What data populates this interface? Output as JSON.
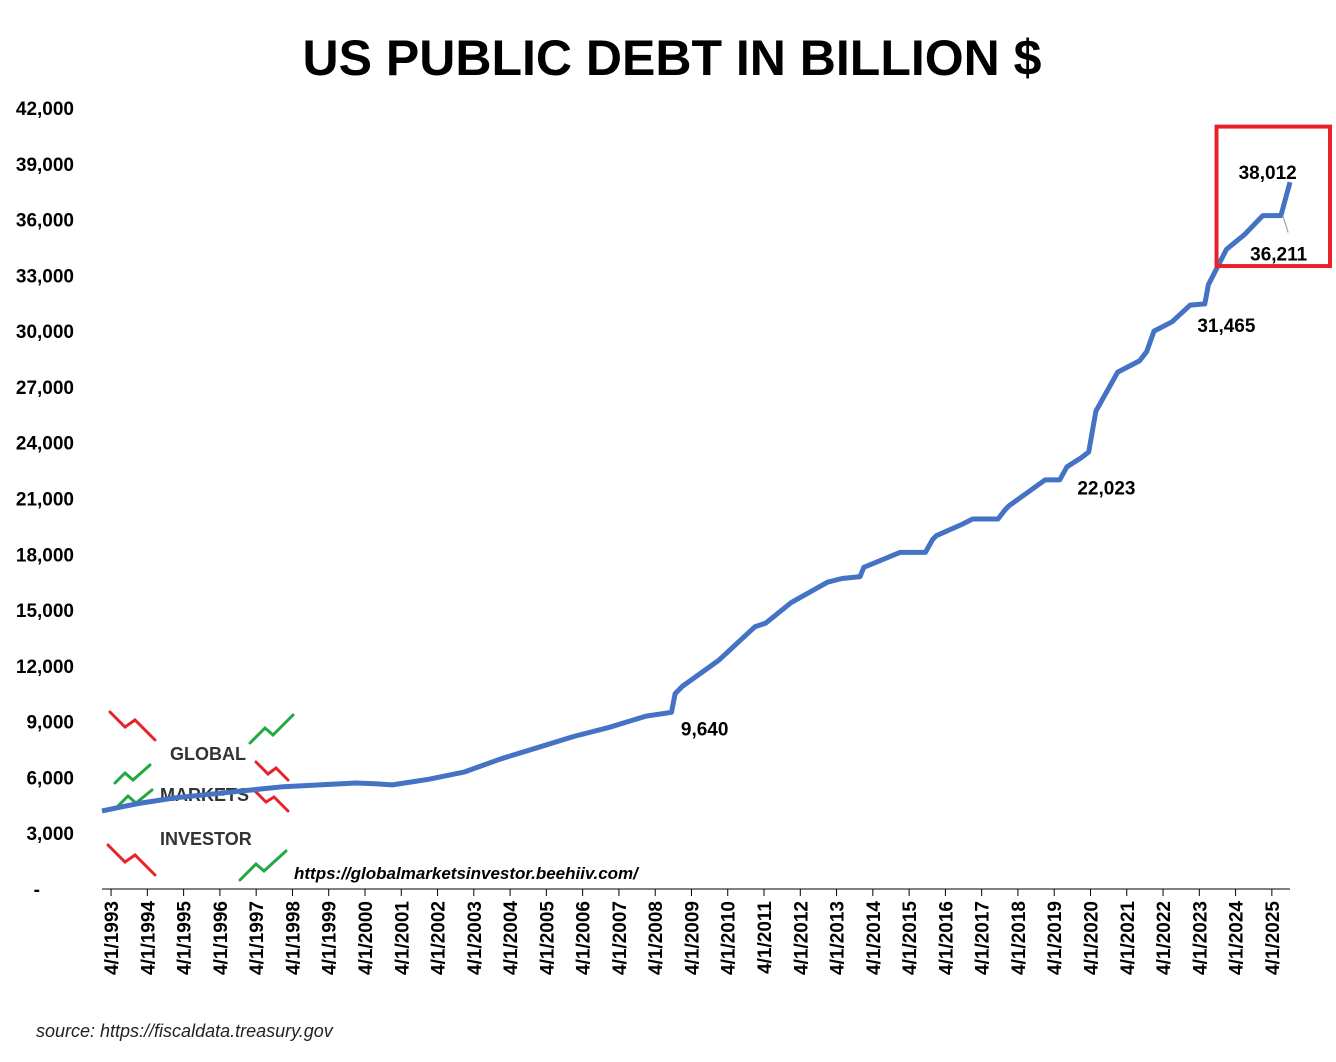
{
  "chart_data": {
    "type": "line",
    "title": "US PUBLIC DEBT IN BILLION $",
    "xlabel": "",
    "ylabel": "",
    "ylim": [
      0,
      42000
    ],
    "y_ticks": [
      {
        "value": 0,
        "label": "-"
      },
      {
        "value": 3000,
        "label": "3,000"
      },
      {
        "value": 6000,
        "label": "6,000"
      },
      {
        "value": 9000,
        "label": "9,000"
      },
      {
        "value": 12000,
        "label": "12,000"
      },
      {
        "value": 15000,
        "label": "15,000"
      },
      {
        "value": 18000,
        "label": "18,000"
      },
      {
        "value": 21000,
        "label": "21,000"
      },
      {
        "value": 24000,
        "label": "24,000"
      },
      {
        "value": 27000,
        "label": "27,000"
      },
      {
        "value": 30000,
        "label": "30,000"
      },
      {
        "value": 33000,
        "label": "33,000"
      },
      {
        "value": 36000,
        "label": "36,000"
      },
      {
        "value": 39000,
        "label": "39,000"
      },
      {
        "value": 42000,
        "label": "42,000"
      }
    ],
    "x_range": [
      1993.0,
      2025.75
    ],
    "x_ticks": [
      {
        "value": 1993.25,
        "label": "4/1/1993"
      },
      {
        "value": 1994.25,
        "label": "4/1/1994"
      },
      {
        "value": 1995.25,
        "label": "4/1/1995"
      },
      {
        "value": 1996.25,
        "label": "4/1/1996"
      },
      {
        "value": 1997.25,
        "label": "4/1/1997"
      },
      {
        "value": 1998.25,
        "label": "4/1/1998"
      },
      {
        "value": 1999.25,
        "label": "4/1/1999"
      },
      {
        "value": 2000.25,
        "label": "4/1/2000"
      },
      {
        "value": 2001.25,
        "label": "4/1/2001"
      },
      {
        "value": 2002.25,
        "label": "4/1/2002"
      },
      {
        "value": 2003.25,
        "label": "4/1/2003"
      },
      {
        "value": 2004.25,
        "label": "4/1/2004"
      },
      {
        "value": 2005.25,
        "label": "4/1/2005"
      },
      {
        "value": 2006.25,
        "label": "4/1/2006"
      },
      {
        "value": 2007.25,
        "label": "4/1/2007"
      },
      {
        "value": 2008.25,
        "label": "4/1/2008"
      },
      {
        "value": 2009.25,
        "label": "4/1/2009"
      },
      {
        "value": 2010.25,
        "label": "4/1/2010"
      },
      {
        "value": 2011.25,
        "label": "4/1/2011"
      },
      {
        "value": 2012.25,
        "label": "4/1/2012"
      },
      {
        "value": 2013.25,
        "label": "4/1/2013"
      },
      {
        "value": 2014.25,
        "label": "4/1/2014"
      },
      {
        "value": 2015.25,
        "label": "4/1/2015"
      },
      {
        "value": 2016.25,
        "label": "4/1/2016"
      },
      {
        "value": 2017.25,
        "label": "4/1/2017"
      },
      {
        "value": 2018.25,
        "label": "4/1/2018"
      },
      {
        "value": 2019.25,
        "label": "4/1/2019"
      },
      {
        "value": 2020.25,
        "label": "4/1/2020"
      },
      {
        "value": 2021.25,
        "label": "4/1/2021"
      },
      {
        "value": 2022.25,
        "label": "4/1/2022"
      },
      {
        "value": 2023.25,
        "label": "4/1/2023"
      },
      {
        "value": 2024.25,
        "label": "4/1/2024"
      },
      {
        "value": 2025.25,
        "label": "4/1/2025"
      }
    ],
    "series": [
      {
        "name": "US Public Debt (billion $)",
        "color": "#4472C4",
        "points": [
          [
            1993.0,
            4200
          ],
          [
            1994.0,
            4600
          ],
          [
            1995.0,
            4900
          ],
          [
            1996.0,
            5100
          ],
          [
            1997.0,
            5300
          ],
          [
            1998.0,
            5500
          ],
          [
            1999.0,
            5600
          ],
          [
            2000.0,
            5700
          ],
          [
            2000.6,
            5650
          ],
          [
            2001.0,
            5600
          ],
          [
            2001.5,
            5750
          ],
          [
            2002.0,
            5900
          ],
          [
            2003.0,
            6300
          ],
          [
            2004.0,
            7000
          ],
          [
            2005.0,
            7600
          ],
          [
            2006.0,
            8200
          ],
          [
            2007.0,
            8700
          ],
          [
            2008.0,
            9300
          ],
          [
            2008.7,
            9500
          ],
          [
            2008.8,
            10500
          ],
          [
            2009.0,
            10900
          ],
          [
            2010.0,
            12300
          ],
          [
            2011.0,
            14100
          ],
          [
            2011.3,
            14300
          ],
          [
            2012.0,
            15400
          ],
          [
            2013.0,
            16500
          ],
          [
            2013.4,
            16700
          ],
          [
            2013.9,
            16800
          ],
          [
            2014.0,
            17300
          ],
          [
            2015.0,
            18100
          ],
          [
            2015.7,
            18100
          ],
          [
            2015.9,
            18800
          ],
          [
            2016.0,
            19000
          ],
          [
            2016.7,
            19600
          ],
          [
            2017.0,
            19900
          ],
          [
            2017.7,
            19900
          ],
          [
            2017.9,
            20400
          ],
          [
            2018.0,
            20600
          ],
          [
            2019.0,
            22000
          ],
          [
            2019.4,
            22000
          ],
          [
            2019.6,
            22700
          ],
          [
            2020.0,
            23200
          ],
          [
            2020.2,
            23500
          ],
          [
            2020.4,
            25700
          ],
          [
            2021.0,
            27800
          ],
          [
            2021.6,
            28400
          ],
          [
            2021.8,
            28900
          ],
          [
            2022.0,
            30000
          ],
          [
            2022.5,
            30500
          ],
          [
            2023.0,
            31400
          ],
          [
            2023.4,
            31465
          ],
          [
            2023.5,
            32500
          ],
          [
            2024.0,
            34400
          ],
          [
            2024.5,
            35200
          ],
          [
            2025.0,
            36211
          ],
          [
            2025.5,
            36211
          ],
          [
            2025.75,
            38012
          ]
        ]
      }
    ],
    "annotations": [
      {
        "x": 2009.2,
        "y": 9640,
        "text": "9,640"
      },
      {
        "x": 2020.0,
        "y": 22023,
        "text": "22,023"
      },
      {
        "x": 2023.5,
        "y": 31465,
        "text": "31,465"
      },
      {
        "x": 2025.3,
        "y": 36211,
        "text": "36,211"
      },
      {
        "x": 2025.3,
        "y": 38012,
        "text": "38,012"
      }
    ],
    "highlight": {
      "x_from": 2024.0,
      "x_to": 2026.0,
      "y_from": 33500,
      "y_to": 41000,
      "color": "#E8212B"
    },
    "grid": false,
    "legend": "none"
  },
  "branding": {
    "logo_words": [
      "GLOBAL",
      "MARKETS",
      "INVESTOR"
    ],
    "url": "https://globalmarketsinvestor.beehiiv.com/"
  },
  "source": "source: https://fiscaldata.treasury.gov"
}
